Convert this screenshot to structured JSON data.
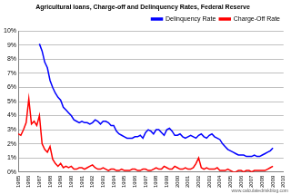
{
  "chart_data": {
    "type": "line",
    "title": "Agricultural loans, Charge-off and Delinquency Rates, Federal Reserve",
    "annotations": [
      "www.calculatedriskblog.com"
    ],
    "x": [
      1985,
      1985.25,
      1985.5,
      1985.75,
      1986,
      1986.25,
      1986.5,
      1986.75,
      1987,
      1987.25,
      1987.5,
      1987.75,
      1988,
      1988.25,
      1988.5,
      1988.75,
      1989,
      1989.25,
      1989.5,
      1989.75,
      1990,
      1990.25,
      1990.5,
      1990.75,
      1991,
      1991.25,
      1991.5,
      1991.75,
      1992,
      1992.25,
      1992.5,
      1992.75,
      1993,
      1993.25,
      1993.5,
      1993.75,
      1994,
      1994.25,
      1994.5,
      1994.75,
      1995,
      1995.25,
      1995.5,
      1995.75,
      1996,
      1996.25,
      1996.5,
      1996.75,
      1997,
      1997.25,
      1997.5,
      1997.75,
      1998,
      1998.25,
      1998.5,
      1998.75,
      1999,
      1999.25,
      1999.5,
      1999.75,
      2000,
      2000.25,
      2000.5,
      2000.75,
      2001,
      2001.25,
      2001.5,
      2001.75,
      2002,
      2002.25,
      2002.5,
      2002.75,
      2003,
      2003.25,
      2003.5,
      2003.75,
      2004,
      2004.25,
      2004.5,
      2004.75,
      2005,
      2005.25,
      2005.5,
      2005.75,
      2006,
      2006.25,
      2006.5,
      2006.75,
      2007,
      2007.25,
      2007.5,
      2007.75,
      2008,
      2008.25,
      2008.5,
      2008.75,
      2009
    ],
    "series": [
      {
        "name": "Delinquency Rate",
        "color": "#0000ff",
        "values": [
          null,
          null,
          null,
          null,
          null,
          null,
          null,
          null,
          9.1,
          8.6,
          7.8,
          7.4,
          6.5,
          6.0,
          5.6,
          5.3,
          5.1,
          4.6,
          4.4,
          4.2,
          4.0,
          3.7,
          3.6,
          3.5,
          3.6,
          3.5,
          3.5,
          3.4,
          3.5,
          3.7,
          3.6,
          3.4,
          3.6,
          3.6,
          3.5,
          3.3,
          3.3,
          2.9,
          2.7,
          2.6,
          2.5,
          2.4,
          2.4,
          2.4,
          2.5,
          2.5,
          2.6,
          2.4,
          2.8,
          3.0,
          2.9,
          2.7,
          3.0,
          3.0,
          2.8,
          2.6,
          3.0,
          3.1,
          2.9,
          2.6,
          2.6,
          2.7,
          2.5,
          2.4,
          2.5,
          2.6,
          2.5,
          2.4,
          2.6,
          2.7,
          2.5,
          2.4,
          2.6,
          2.7,
          2.5,
          2.4,
          2.3,
          2.0,
          1.8,
          1.6,
          1.5,
          1.4,
          1.3,
          1.2,
          1.2,
          1.2,
          1.1,
          1.1,
          1.1,
          1.2,
          1.1,
          1.1,
          1.2,
          1.3,
          1.4,
          1.5,
          1.7
        ]
      },
      {
        "name": "Charge-Off Rate",
        "color": "#ff0000",
        "values": [
          2.7,
          2.6,
          3.0,
          3.5,
          5.2,
          3.4,
          3.6,
          3.3,
          4.0,
          2.0,
          1.6,
          1.4,
          1.8,
          0.9,
          0.6,
          0.4,
          0.6,
          0.3,
          0.4,
          0.3,
          0.4,
          0.2,
          0.2,
          0.3,
          0.3,
          0.2,
          0.3,
          0.4,
          0.5,
          0.3,
          0.2,
          0.2,
          0.3,
          0.2,
          0.1,
          0.2,
          0.2,
          0.1,
          0.1,
          0.2,
          0.1,
          0.1,
          0.1,
          0.2,
          0.2,
          0.1,
          0.1,
          0.2,
          0.2,
          0.1,
          0.1,
          0.2,
          0.3,
          0.2,
          0.2,
          0.4,
          0.3,
          0.2,
          0.2,
          0.4,
          0.3,
          0.2,
          0.2,
          0.3,
          0.2,
          0.2,
          0.3,
          0.6,
          1.0,
          0.3,
          0.2,
          0.3,
          0.2,
          0.2,
          0.2,
          0.3,
          0.1,
          0.1,
          0.1,
          0.2,
          0.1,
          0.0,
          0.0,
          0.1,
          0.1,
          0.0,
          0.1,
          0.1,
          0.0,
          0.1,
          0.1,
          0.1,
          0.1,
          0.1,
          0.2,
          0.3,
          0.4
        ]
      }
    ],
    "xlim": [
      1985,
      2010
    ],
    "xticks": [
      1985,
      1986,
      1987,
      1988,
      1989,
      1990,
      1991,
      1992,
      1993,
      1994,
      1995,
      1996,
      1997,
      1998,
      1999,
      2000,
      2001,
      2002,
      2003,
      2004,
      2005,
      2006,
      2007,
      2008,
      2009,
      2010
    ],
    "ylim": [
      0,
      10
    ],
    "yticks": [
      {
        "value": 0,
        "label": "0%"
      },
      {
        "value": 1,
        "label": "1%"
      },
      {
        "value": 2,
        "label": "2%"
      },
      {
        "value": 3,
        "label": "3%"
      },
      {
        "value": 4,
        "label": "4%"
      },
      {
        "value": 5,
        "label": "5%"
      },
      {
        "value": 6,
        "label": "6%"
      },
      {
        "value": 7,
        "label": "7%"
      },
      {
        "value": 8,
        "label": "8%"
      },
      {
        "value": 9,
        "label": "9%"
      },
      {
        "value": 10,
        "label": "10%"
      }
    ],
    "grid": true,
    "legend": "upper right"
  }
}
